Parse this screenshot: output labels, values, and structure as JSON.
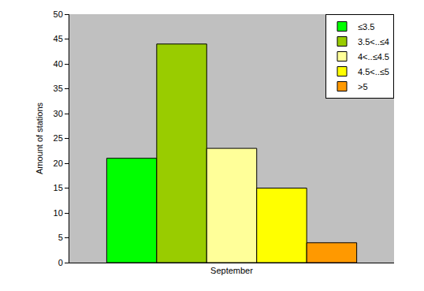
{
  "chart_data": {
    "type": "bar",
    "y_label": "Amount of stations",
    "categories": [
      "September"
    ],
    "series": [
      {
        "name": "≤3.5",
        "color": "#00ff00",
        "values": [
          21
        ]
      },
      {
        "name": "3.5<..≤4",
        "color": "#99cc00",
        "values": [
          44
        ]
      },
      {
        "name": "4<..≤4.5",
        "color": "#ffff99",
        "values": [
          23
        ]
      },
      {
        "name": "4.5<..≤5",
        "color": "#ffff00",
        "values": [
          15
        ]
      },
      {
        "name": ">5",
        "color": "#ff9900",
        "values": [
          4
        ]
      }
    ],
    "ylim": [
      0,
      50
    ],
    "yticks": [
      0,
      5,
      10,
      15,
      20,
      25,
      30,
      35,
      40,
      45,
      50
    ],
    "grid": false,
    "legend": "upper right"
  }
}
